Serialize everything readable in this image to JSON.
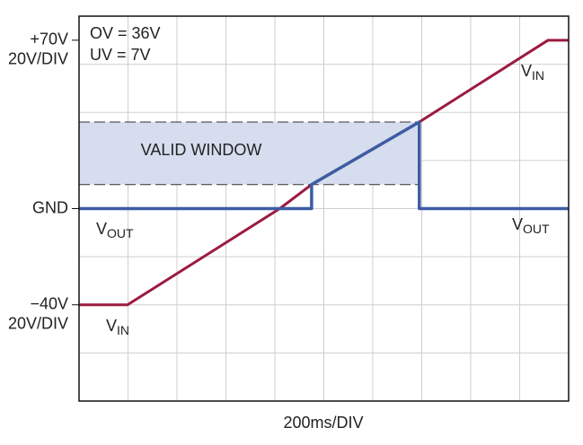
{
  "chart_data": {
    "type": "line",
    "xlabel": "200ms/DIV",
    "xlim": [
      0,
      2000
    ],
    "ylim": [
      -80,
      80
    ],
    "xgrid": [
      200,
      400,
      600,
      800,
      1000,
      1200,
      1400,
      1600,
      1800
    ],
    "ygrid": [
      -60,
      -40,
      -20,
      0,
      20,
      40,
      60
    ],
    "yticks": [
      {
        "value": 70,
        "label": "+70V"
      },
      {
        "value": 0,
        "label": "GND"
      },
      {
        "value": -40,
        "label": "−40V"
      }
    ],
    "scale_labels": [
      {
        "value": 70,
        "label": "20V/DIV"
      },
      {
        "value": -40,
        "label": "20V/DIV"
      }
    ],
    "settings_text": [
      "OV = 36V",
      "UV = 7V"
    ],
    "valid_window": {
      "label": "VALID WINDOW",
      "lower": 10,
      "upper": 36,
      "x_end": 1390
    },
    "series": [
      {
        "name": "VIN",
        "color": "#9b1b3f",
        "x": [
          0,
          198,
          820,
          950,
          1390,
          1916,
          2000
        ],
        "values": [
          -40,
          -40,
          0,
          10,
          36,
          70,
          70
        ],
        "labels": [
          {
            "main": "V",
            "sub": "IN"
          },
          {
            "main": "V",
            "sub": "IN"
          }
        ]
      },
      {
        "name": "VOUT",
        "color": "#3d5ca3",
        "x": [
          0,
          950,
          950,
          1390,
          1390,
          2000
        ],
        "values": [
          0,
          0,
          10,
          36,
          0,
          0
        ],
        "labels": [
          {
            "main": "V",
            "sub": "OUT"
          },
          {
            "main": "V",
            "sub": "OUT"
          }
        ]
      }
    ]
  }
}
